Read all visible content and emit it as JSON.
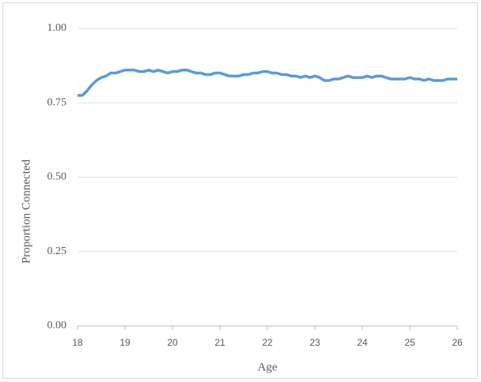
{
  "chart_data": {
    "type": "line",
    "x_label": "Age",
    "y_label": "Proportion Connected",
    "x": [
      18.0,
      18.1,
      18.2,
      18.3,
      18.4,
      18.5,
      18.6,
      18.7,
      18.8,
      18.9,
      19.0,
      19.1,
      19.2,
      19.3,
      19.4,
      19.5,
      19.6,
      19.7,
      19.8,
      19.9,
      20.0,
      20.1,
      20.2,
      20.3,
      20.4,
      20.5,
      20.6,
      20.7,
      20.8,
      20.9,
      21.0,
      21.1,
      21.2,
      21.3,
      21.4,
      21.5,
      21.6,
      21.7,
      21.8,
      21.9,
      22.0,
      22.1,
      22.2,
      22.3,
      22.4,
      22.5,
      22.6,
      22.7,
      22.8,
      22.9,
      23.0,
      23.1,
      23.2,
      23.3,
      23.4,
      23.5,
      23.6,
      23.7,
      23.8,
      23.9,
      24.0,
      24.1,
      24.2,
      24.3,
      24.4,
      24.5,
      24.6,
      24.7,
      24.8,
      24.9,
      25.0,
      25.1,
      25.2,
      25.3,
      25.4,
      25.5,
      25.6,
      25.7,
      25.8,
      25.9,
      26.0
    ],
    "values": [
      0.775,
      0.775,
      0.79,
      0.81,
      0.825,
      0.835,
      0.84,
      0.85,
      0.85,
      0.855,
      0.86,
      0.86,
      0.86,
      0.855,
      0.855,
      0.86,
      0.855,
      0.86,
      0.855,
      0.85,
      0.855,
      0.855,
      0.86,
      0.86,
      0.855,
      0.85,
      0.85,
      0.845,
      0.845,
      0.85,
      0.85,
      0.845,
      0.84,
      0.84,
      0.84,
      0.845,
      0.845,
      0.85,
      0.85,
      0.855,
      0.855,
      0.85,
      0.85,
      0.845,
      0.845,
      0.84,
      0.84,
      0.835,
      0.84,
      0.835,
      0.84,
      0.835,
      0.825,
      0.825,
      0.83,
      0.83,
      0.835,
      0.84,
      0.835,
      0.835,
      0.835,
      0.84,
      0.835,
      0.84,
      0.84,
      0.835,
      0.83,
      0.83,
      0.83,
      0.83,
      0.835,
      0.83,
      0.83,
      0.825,
      0.83,
      0.825,
      0.825,
      0.825,
      0.83,
      0.83,
      0.83
    ],
    "color": "#5b9bd5",
    "xlim": [
      18,
      26
    ],
    "xticks": [
      18,
      19,
      20,
      21,
      22,
      23,
      24,
      25,
      26
    ],
    "ylim": [
      0,
      1
    ],
    "yticks": [
      {
        "value": 0,
        "label": "0.00"
      },
      {
        "value": 0.25,
        "label": "0.25"
      },
      {
        "value": 0.5,
        "label": "0.50"
      },
      {
        "value": 0.75,
        "label": "0.75"
      },
      {
        "value": 1,
        "label": "1.00"
      }
    ],
    "grid": true
  }
}
